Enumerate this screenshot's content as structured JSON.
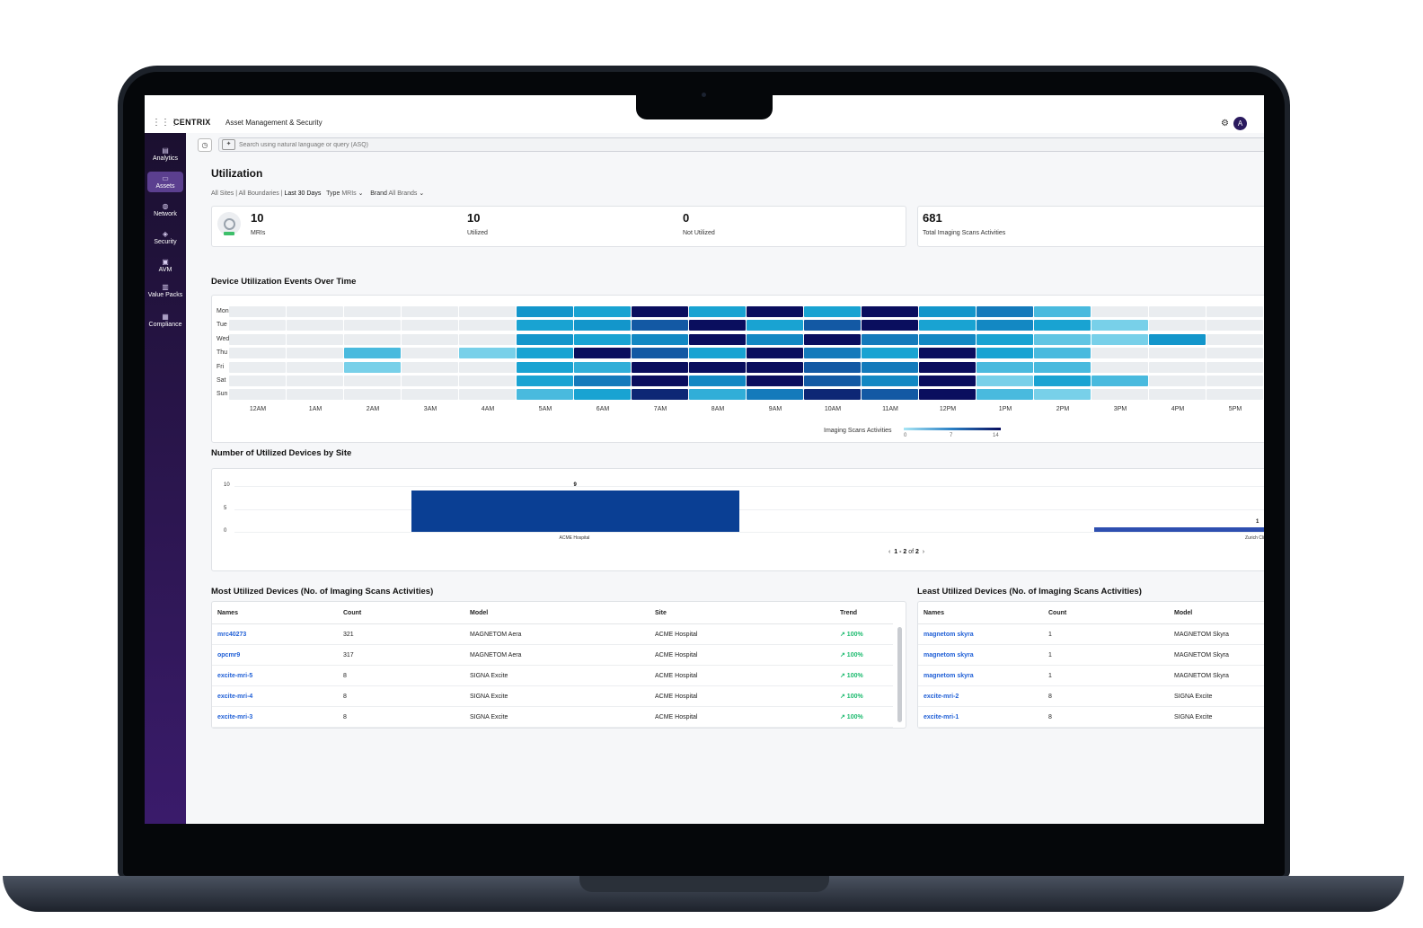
{
  "app": {
    "logo": "CENTRIX",
    "title": "Asset Management & Security",
    "avatar": "A"
  },
  "sidebar": {
    "items": [
      {
        "label": "Analytics"
      },
      {
        "label": "Assets"
      },
      {
        "label": "Network"
      },
      {
        "label": "Security"
      },
      {
        "label": "AVM"
      },
      {
        "label": "Value Packs"
      },
      {
        "label": "Compliance"
      }
    ]
  },
  "search": {
    "placeholder": "Search using natural language or query (ASQ)"
  },
  "page": {
    "title": "Utilization"
  },
  "filters": {
    "sites": "All Sites | All Boundaries |",
    "range": "Last 30 Days",
    "type_label": "Type",
    "type_value": "MRIs",
    "brand_label": "Brand",
    "brand_value": "All Brands"
  },
  "stats": {
    "mris": {
      "value": "10",
      "label": "MRIs"
    },
    "utilized": {
      "value": "10",
      "label": "Utilized"
    },
    "not_utilized": {
      "value": "0",
      "label": "Not Utilized"
    },
    "total": {
      "value": "681",
      "label": "Total Imaging Scans Activities"
    }
  },
  "heatmap": {
    "title": "Device Utilization Events Over Time",
    "days": [
      "Mon",
      "Tue",
      "Wed",
      "Thu",
      "Fri",
      "Sat",
      "Sun"
    ],
    "hours": [
      "12AM",
      "1AM",
      "2AM",
      "3AM",
      "4AM",
      "5AM",
      "6AM",
      "7AM",
      "8AM",
      "9AM",
      "10AM",
      "11AM",
      "12PM",
      "1PM",
      "2PM",
      "3PM",
      "4PM",
      "5PM"
    ],
    "values": [
      [
        0,
        0,
        0,
        0,
        0,
        7,
        6,
        14,
        6,
        14,
        6,
        14,
        7,
        9,
        4,
        0,
        0,
        0
      ],
      [
        0,
        0,
        0,
        0,
        0,
        6,
        7,
        11,
        14,
        6,
        11,
        14,
        6,
        8,
        6,
        2,
        0,
        0
      ],
      [
        0,
        0,
        0,
        0,
        0,
        7,
        6,
        8,
        14,
        8,
        14,
        9,
        8,
        6,
        3,
        2,
        7,
        0
      ],
      [
        0,
        0,
        4,
        0,
        2,
        6,
        14,
        11,
        6,
        14,
        9,
        6,
        14,
        6,
        4,
        0,
        0,
        0
      ],
      [
        0,
        0,
        2,
        0,
        0,
        6,
        5,
        14,
        14,
        14,
        11,
        9,
        14,
        4,
        4,
        0,
        0,
        0
      ],
      [
        0,
        0,
        0,
        0,
        0,
        6,
        9,
        14,
        8,
        14,
        11,
        8,
        14,
        2,
        6,
        4,
        0,
        0
      ],
      [
        0,
        0,
        0,
        0,
        0,
        4,
        6,
        13,
        5,
        9,
        13,
        11,
        14,
        4,
        2,
        0,
        0,
        0
      ]
    ],
    "legend": {
      "title": "Imaging Scans Activities",
      "min": "0",
      "mid": "7",
      "max": "14"
    },
    "colors": {
      "empty": "#eaedf0",
      "low": "#a8e6f5",
      "high": "#0a0e5e"
    }
  },
  "chart_data": {
    "type": "bar",
    "title": "Number of Utilized Devices by Site",
    "categories": [
      "ACME Hospital",
      "Zurich Clinic"
    ],
    "values": [
      9,
      1
    ],
    "data_labels": [
      "9",
      "1"
    ],
    "yticks": [
      "10",
      "5",
      "0"
    ],
    "ylim": [
      0,
      10
    ],
    "grid": true,
    "bar_color": "#0a3f94",
    "pager": {
      "prefix": "‹",
      "range": "1 - 2",
      "of": "of",
      "total": "2",
      "suffix": "›"
    }
  },
  "most_utilized": {
    "title": "Most Utilized Devices (No. of Imaging Scans Activities)",
    "columns": [
      "Names",
      "Count",
      "Model",
      "Site",
      "Trend"
    ],
    "rows": [
      {
        "name": "mrc40273",
        "count": "321",
        "model": "MAGNETOM Aera",
        "site": "ACME Hospital",
        "trend": "↗ 100%"
      },
      {
        "name": "opcmr9",
        "count": "317",
        "model": "MAGNETOM Aera",
        "site": "ACME Hospital",
        "trend": "↗ 100%"
      },
      {
        "name": "excite-mri-5",
        "count": "8",
        "model": "SIGNA Excite",
        "site": "ACME Hospital",
        "trend": "↗ 100%"
      },
      {
        "name": "excite-mri-4",
        "count": "8",
        "model": "SIGNA Excite",
        "site": "ACME Hospital",
        "trend": "↗ 100%"
      },
      {
        "name": "excite-mri-3",
        "count": "8",
        "model": "SIGNA Excite",
        "site": "ACME Hospital",
        "trend": "↗ 100%"
      }
    ]
  },
  "least_utilized": {
    "title": "Least Utilized Devices (No. of Imaging Scans Activities)",
    "columns": [
      "Names",
      "Count",
      "Model"
    ],
    "rows": [
      {
        "name": "magnetom skyra",
        "count": "1",
        "model": "MAGNETOM Skyra"
      },
      {
        "name": "magnetom skyra",
        "count": "1",
        "model": "MAGNETOM Skyra"
      },
      {
        "name": "magnetom skyra",
        "count": "1",
        "model": "MAGNETOM Skyra"
      },
      {
        "name": "excite-mri-2",
        "count": "8",
        "model": "SIGNA Excite"
      },
      {
        "name": "excite-mri-1",
        "count": "8",
        "model": "SIGNA Excite"
      }
    ]
  }
}
